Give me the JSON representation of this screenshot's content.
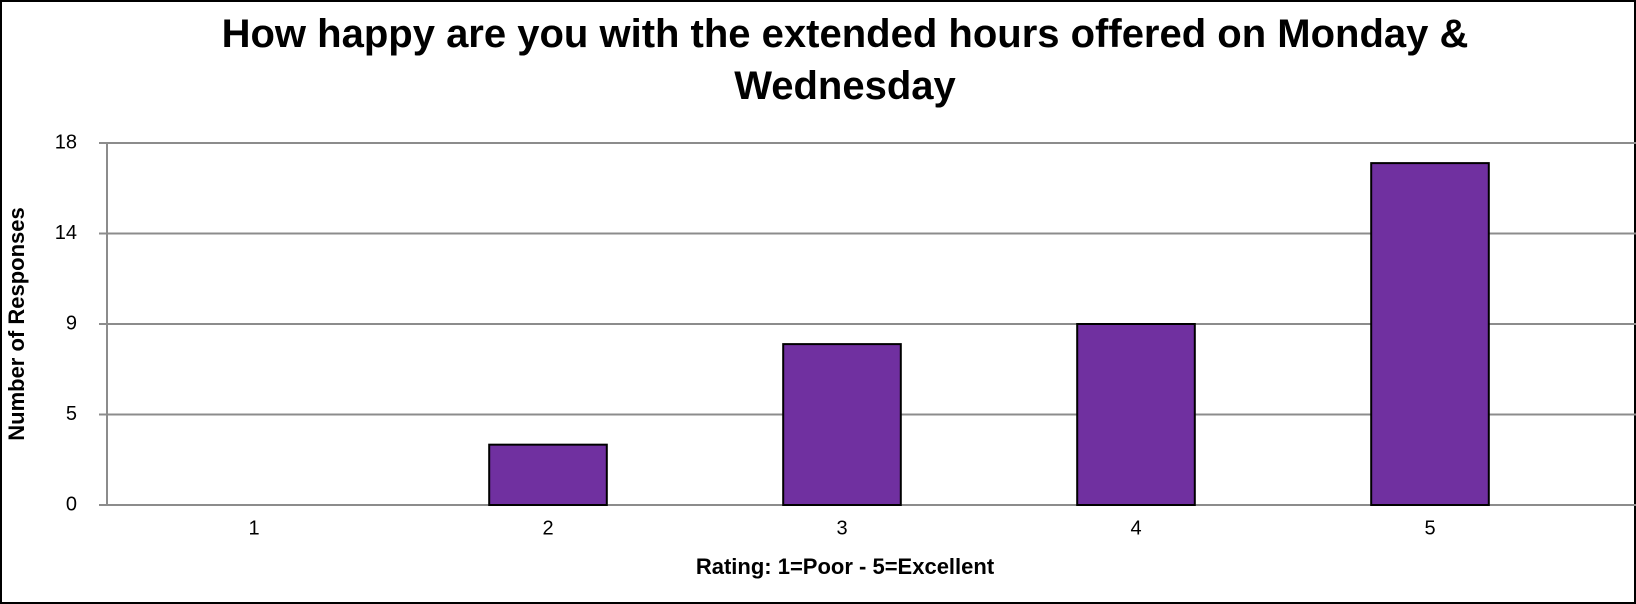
{
  "chart_data": {
    "type": "bar",
    "title": "How happy are you with the extended hours offered on Monday & Wednesday",
    "x_label": "Rating: 1=Poor - 5=Excellent",
    "y_label": "Number of Responses",
    "categories": [
      "1",
      "2",
      "3",
      "4",
      "5"
    ],
    "values": [
      0,
      3,
      8,
      9,
      17
    ],
    "color": "#7030a0",
    "ylim": [
      0,
      18
    ],
    "yticks": [
      0,
      {
        "value": 4.5,
        "label": "5"
      },
      9,
      {
        "value": 13.5,
        "label": "14"
      },
      18
    ],
    "grid": true
  }
}
